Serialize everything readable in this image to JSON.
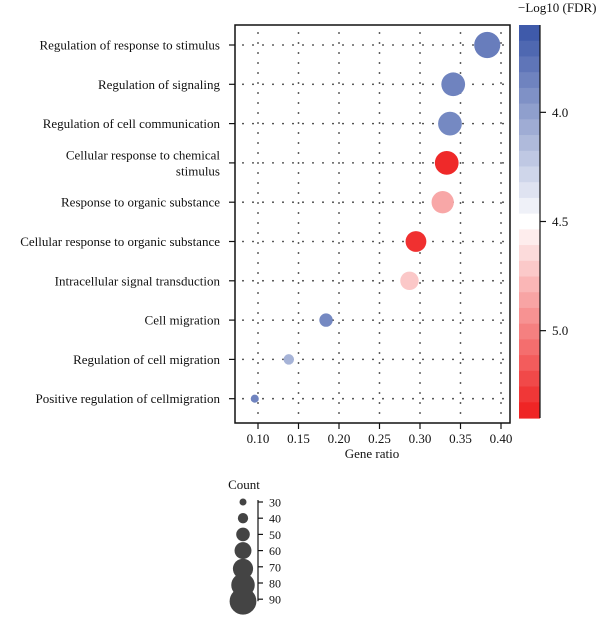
{
  "chart_data": {
    "type": "scatter",
    "title": "",
    "xlabel": "Gene ratio",
    "ylabel": "",
    "xlim": [
      0.07,
      0.405
    ],
    "xticks": [
      "0.10",
      "0.15",
      "0.20",
      "0.25",
      "0.30",
      "0.35",
      "0.40"
    ],
    "categories": [
      [
        "Regulation of response to stimulus"
      ],
      [
        "Regulation of signaling"
      ],
      [
        "Regulation of cell communication"
      ],
      [
        "Cellular response to chemical",
        "stimulus"
      ],
      [
        "Response to organic substance"
      ],
      [
        "Cellular response to organic substance"
      ],
      [
        "Intracellular signal transduction"
      ],
      [
        "Cell migration"
      ],
      [
        "Regulation of cell migration"
      ],
      [
        "Positive regulation of cellmigration"
      ]
    ],
    "points": [
      {
        "x": 0.383,
        "count": 88,
        "log10fdr": 3.82
      },
      {
        "x": 0.341,
        "count": 80,
        "log10fdr": 3.85
      },
      {
        "x": 0.337,
        "count": 80,
        "log10fdr": 3.88
      },
      {
        "x": 0.333,
        "count": 80,
        "log10fdr": 5.35
      },
      {
        "x": 0.328,
        "count": 75,
        "log10fdr": 4.85
      },
      {
        "x": 0.295,
        "count": 70,
        "log10fdr": 5.32
      },
      {
        "x": 0.287,
        "count": 62,
        "log10fdr": 4.72
      },
      {
        "x": 0.184,
        "count": 45,
        "log10fdr": 3.88
      },
      {
        "x": 0.138,
        "count": 35,
        "log10fdr": 4.1
      },
      {
        "x": 0.096,
        "count": 27,
        "log10fdr": 3.85
      }
    ],
    "colorbar": {
      "title": "−Log10 (FDR)",
      "ticks": [
        "4.0",
        "4.5",
        "5.0"
      ],
      "range": [
        3.6,
        5.4
      ],
      "low_color": "#3753a6",
      "mid_color": "#ffffff",
      "high_color": "#ee1c1c"
    },
    "size_legend": {
      "title": "Count",
      "values": [
        "30",
        "40",
        "50",
        "60",
        "70",
        "80",
        "90"
      ]
    },
    "grid": "dotted",
    "legend_position": "right"
  }
}
